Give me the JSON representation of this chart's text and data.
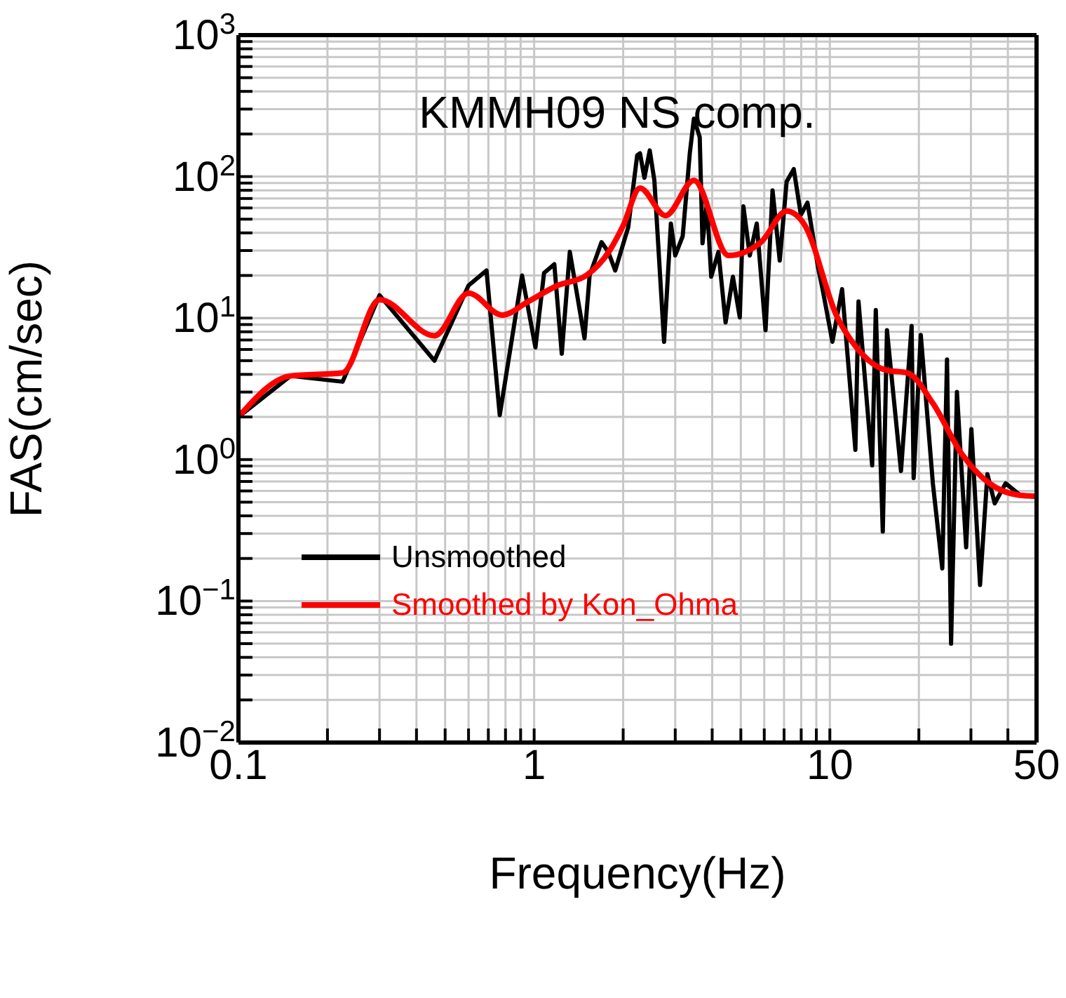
{
  "chart_data": {
    "type": "line",
    "title": "KMMH09 NS comp.",
    "xlabel": "Frequency(Hz)",
    "ylabel": "FAS(cm/sec)",
    "log": "xy",
    "grid": true,
    "legend": "left",
    "marker": "none",
    "line_style": "solid",
    "xlim": [
      0.1,
      50
    ],
    "ylim": [
      0.01,
      1000
    ],
    "xticks": [
      0.1,
      {
        "value": 0.2,
        "label": null
      },
      {
        "value": 0.3,
        "label": null
      },
      {
        "value": 0.4,
        "label": null
      },
      {
        "value": 0.5,
        "label": null
      },
      {
        "value": 0.6,
        "label": null
      },
      {
        "value": 0.7,
        "label": null
      },
      {
        "value": 0.8,
        "label": null
      },
      {
        "value": 0.9,
        "label": null
      },
      1,
      {
        "value": 2,
        "label": null
      },
      {
        "value": 3,
        "label": null
      },
      {
        "value": 4,
        "label": null
      },
      {
        "value": 5,
        "label": null
      },
      {
        "value": 6,
        "label": null
      },
      {
        "value": 7,
        "label": null
      },
      {
        "value": 8,
        "label": null
      },
      {
        "value": 9,
        "label": null
      },
      10,
      {
        "value": 20,
        "label": null
      },
      {
        "value": 30,
        "label": null
      },
      {
        "value": 40,
        "label": null
      },
      50
    ],
    "yticks": [
      {
        "value": 0.01,
        "label": "10$^{−2}$"
      },
      {
        "value": 0.02,
        "label": null
      },
      {
        "value": 0.03,
        "label": null
      },
      {
        "value": 0.04,
        "label": null
      },
      {
        "value": 0.05,
        "label": null
      },
      {
        "value": 0.06,
        "label": null
      },
      {
        "value": 0.07,
        "label": null
      },
      {
        "value": 0.08,
        "label": null
      },
      {
        "value": 0.09,
        "label": null
      },
      {
        "value": 0.1,
        "label": "10$^{−1}$"
      },
      {
        "value": 0.2,
        "label": null
      },
      {
        "value": 0.3,
        "label": null
      },
      {
        "value": 0.4,
        "label": null
      },
      {
        "value": 0.5,
        "label": null
      },
      {
        "value": 0.6,
        "label": null
      },
      {
        "value": 0.7,
        "label": null
      },
      {
        "value": 0.8,
        "label": null
      },
      {
        "value": 0.9,
        "label": null
      },
      {
        "value": 1,
        "label": "10$^{0}$"
      },
      {
        "value": 2,
        "label": null
      },
      {
        "value": 3,
        "label": null
      },
      {
        "value": 4,
        "label": null
      },
      {
        "value": 5,
        "label": null
      },
      {
        "value": 6,
        "label": null
      },
      {
        "value": 7,
        "label": null
      },
      {
        "value": 8,
        "label": null
      },
      {
        "value": 9,
        "label": null
      },
      {
        "value": 10,
        "label": "10$^{1}$"
      },
      {
        "value": 20,
        "label": null
      },
      {
        "value": 30,
        "label": null
      },
      {
        "value": 40,
        "label": null
      },
      {
        "value": 50,
        "label": null
      },
      {
        "value": 60,
        "label": null
      },
      {
        "value": 70,
        "label": null
      },
      {
        "value": 80,
        "label": null
      },
      {
        "value": 90,
        "label": null
      },
      {
        "value": 100,
        "label": "10$^{2}$"
      },
      {
        "value": 200,
        "label": null
      },
      {
        "value": 300,
        "label": null
      },
      {
        "value": 400,
        "label": null
      },
      {
        "value": 500,
        "label": null
      },
      {
        "value": 600,
        "label": null
      },
      {
        "value": 700,
        "label": null
      },
      {
        "value": 800,
        "label": null
      },
      {
        "value": 900,
        "label": null
      },
      {
        "value": 1000,
        "label": "10$^{3}$"
      }
    ],
    "series": [
      {
        "name": "Unsmoothed",
        "color": "#000000",
        "x": [
          0.1,
          0.15,
          0.225,
          0.3,
          0.46,
          0.6,
          0.69,
          0.765,
          0.91,
          1.01,
          1.08,
          1.17,
          1.24,
          1.32,
          1.48,
          1.54,
          1.69,
          1.78,
          1.88,
          2.08,
          2.23,
          2.28,
          2.36,
          2.46,
          2.55,
          2.75,
          2.9,
          3.0,
          3.18,
          3.36,
          3.47,
          3.63,
          3.71,
          3.84,
          3.97,
          4.2,
          4.44,
          4.7,
          4.96,
          5.1,
          5.36,
          5.66,
          6.06,
          6.4,
          6.77,
          7.14,
          7.55,
          7.98,
          8.4,
          9.13,
          9.45,
          10.2,
          11.0,
          12.2,
          12.5,
          13.9,
          14.3,
          15.1,
          15.6,
          17.4,
          18.9,
          19.2,
          20.3,
          22.3,
          24.0,
          24.9,
          25.7,
          26.9,
          28.9,
          30.1,
          32.2,
          34.1,
          36.1,
          39.3,
          44,
          50
        ],
        "values": [
          2.0,
          3.9,
          3.55,
          14.5,
          5.0,
          17,
          21.7,
          2.06,
          20,
          6.2,
          20.8,
          24,
          5.6,
          29.4,
          7.2,
          20,
          34.4,
          29.4,
          21.7,
          43.8,
          141,
          146,
          98,
          153,
          94,
          6.8,
          46.6,
          27.7,
          38,
          146,
          257,
          190,
          33.8,
          65.5,
          19.6,
          29.4,
          9.3,
          19.6,
          10.1,
          61.7,
          27.7,
          46.6,
          8.2,
          80,
          25.5,
          92,
          113,
          53.6,
          65.5,
          22.6,
          16,
          6.8,
          16,
          1.17,
          13.1,
          0.91,
          11.4,
          0.31,
          8.2,
          0.83,
          8.8,
          0.74,
          7.6,
          0.68,
          0.17,
          5.1,
          0.05,
          3.0,
          0.24,
          1.64,
          0.13,
          0.79,
          0.49,
          0.68,
          0.56,
          0.55
        ]
      },
      {
        "name": "Smoothed by Kon_Ohma",
        "color": "#ff0000",
        "x": [
          0.1,
          0.15,
          0.225,
          0.3,
          0.46,
          0.6,
          0.78,
          0.95,
          1.2,
          1.5,
          1.8,
          2.0,
          2.28,
          2.78,
          3.47,
          4.54,
          5.85,
          7.14,
          8.16,
          10.6,
          12.3,
          15.4,
          18.3,
          22.3,
          27.9,
          34.6,
          43.6,
          50
        ],
        "values": [
          2.0,
          3.9,
          4.1,
          13.5,
          7.5,
          15,
          10.5,
          13,
          17,
          20,
          30,
          45,
          83,
          53,
          94,
          27.7,
          34.4,
          57,
          46.6,
          10.1,
          6.2,
          4.3,
          4.1,
          2.5,
          1.1,
          0.68,
          0.56,
          0.55
        ]
      }
    ]
  }
}
